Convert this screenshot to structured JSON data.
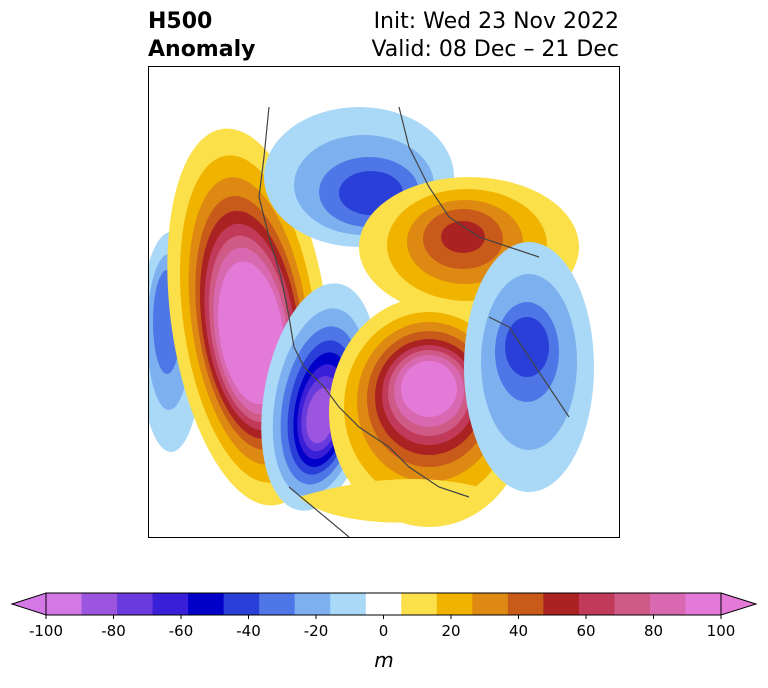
{
  "title": {
    "left_line1": "H500",
    "left_line2": "Anomaly",
    "right_line1": "Init: Wed 23 Nov 2022",
    "right_line2": "Valid: 08 Dec – 21 Dec"
  },
  "colorbar": {
    "unit": "m",
    "ticks": [
      "-100",
      "-80",
      "-60",
      "-40",
      "-20",
      "0",
      "20",
      "40",
      "60",
      "80",
      "100"
    ],
    "colors": [
      "#d478e6",
      "#9b55de",
      "#6a3bdc",
      "#3a1fd8",
      "#0000c8",
      "#2a3fd8",
      "#4f76e6",
      "#7cb0ef",
      "#aad8f7",
      "#ffffff",
      "#fbe04a",
      "#f0b400",
      "#de8a12",
      "#c85a1a",
      "#aa2222",
      "#c23a5a",
      "#ce5a85",
      "#d868b0",
      "#e47ad8"
    ]
  },
  "map": {
    "icon": "north-america-polar-stereographic-map",
    "anomaly_levels": [
      "-100",
      "-90",
      "-80",
      "-70",
      "-60",
      "-50",
      "-40",
      "-30",
      "-20",
      "-10",
      "0",
      "10",
      "20",
      "30",
      "40",
      "50",
      "60",
      "70",
      "80",
      "90",
      "100"
    ]
  }
}
